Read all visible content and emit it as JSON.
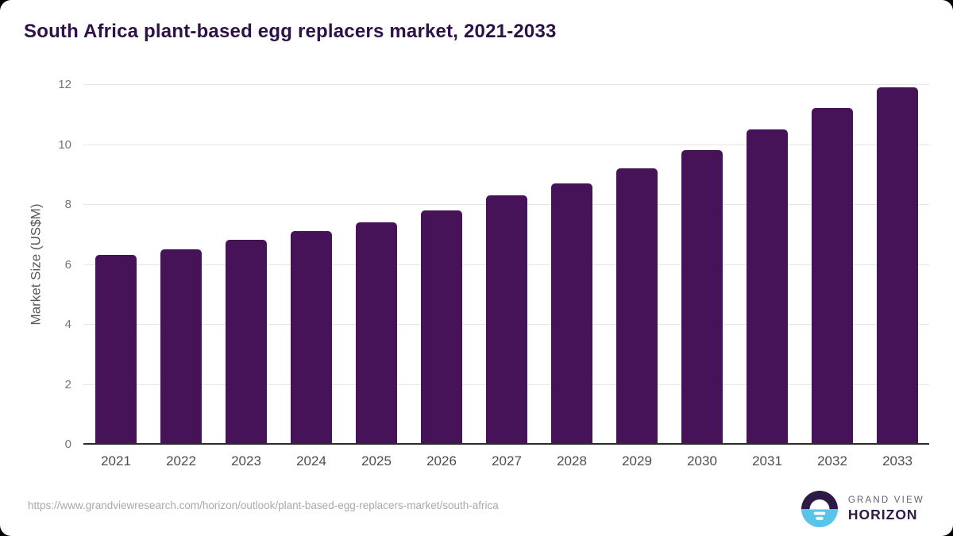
{
  "header": {
    "title": "South Africa plant-based egg replacers market, 2021-2033"
  },
  "chart_data": {
    "type": "bar",
    "title": "South Africa plant-based egg replacers market, 2021-2033",
    "categories": [
      "2021",
      "2022",
      "2023",
      "2024",
      "2025",
      "2026",
      "2027",
      "2028",
      "2029",
      "2030",
      "2031",
      "2032",
      "2033"
    ],
    "values": [
      6.3,
      6.5,
      6.8,
      7.1,
      7.4,
      7.8,
      8.3,
      8.7,
      9.2,
      9.8,
      10.5,
      11.2,
      11.9
    ],
    "xlabel": "",
    "ylabel": "Market Size (US$M)",
    "ylim": [
      0,
      12
    ],
    "yticks": [
      0,
      2,
      4,
      6,
      8,
      10,
      12
    ],
    "grid": "horizontal-only",
    "legend": "none",
    "bar_corner": "rounded-top"
  },
  "footer": {
    "source_url": "https://www.grandviewresearch.com/horizon/outlook/plant-based-egg-replacers-market/south-africa",
    "logo": {
      "icon": "horizon-sunrise-icon",
      "line1": "GRAND VIEW",
      "line2": "HORIZON"
    }
  },
  "colors": {
    "bar": "#461358",
    "title": "#2E1147",
    "axis": "#2B2B2B",
    "grid": "#E6E6E6",
    "tick": "#757575",
    "xlabel": "#4D4D4D",
    "url": "#A9A9A9",
    "logo_dark": "#2E1A47",
    "logo_blue": "#59C3EA"
  }
}
